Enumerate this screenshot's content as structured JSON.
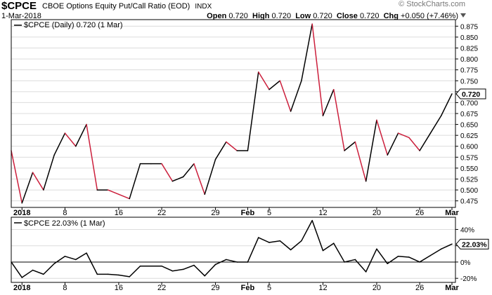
{
  "header": {
    "symbol": "$CPCE",
    "name": "CBOE Options Equity Put/Call Ratio (EOD)",
    "exchange": "INDX",
    "date": "1-Mar-2018",
    "open_label": "Open",
    "open": "0.720",
    "high_label": "High",
    "high": "0.720",
    "low_label": "Low",
    "low": "0.720",
    "close_label": "Close",
    "close": "0.720",
    "chg_label": "Chg",
    "chg": "+0.050 (+7.46%)",
    "watermark": "© StockCharts.com"
  },
  "colors": {
    "up": "#000000",
    "down": "#cc1f3c",
    "grid": "#dcdcdc",
    "axis": "#000000"
  },
  "chart_data": [
    {
      "type": "line",
      "legend": "$CPCE (Daily) 0.720 (1 Mar)",
      "last_value_label": "0.720",
      "ylim": [
        0.46,
        0.89
      ],
      "y_ticks": [
        "0.475",
        "0.500",
        "0.525",
        "0.550",
        "0.575",
        "0.600",
        "0.625",
        "0.650",
        "0.675",
        "0.700",
        "0.725",
        "0.750",
        "0.775",
        "0.800",
        "0.825",
        "0.850",
        "0.875"
      ],
      "x_tick_labels": [
        {
          "label": "2018",
          "i": 1,
          "bold": true
        },
        {
          "label": "8",
          "i": 5
        },
        {
          "label": "16",
          "i": 10
        },
        {
          "label": "22",
          "i": 14
        },
        {
          "label": "29",
          "i": 19
        },
        {
          "label": "Feb",
          "i": 22,
          "bold": true
        },
        {
          "label": "5",
          "i": 24
        },
        {
          "label": "12",
          "i": 29
        },
        {
          "label": "20",
          "i": 34
        },
        {
          "label": "26",
          "i": 38
        },
        {
          "label": "Mar",
          "i": 41,
          "bold": true
        }
      ],
      "values": [
        0.59,
        0.47,
        0.54,
        0.5,
        0.58,
        0.63,
        0.6,
        0.65,
        0.5,
        0.5,
        0.49,
        0.48,
        0.56,
        0.56,
        0.56,
        0.52,
        0.53,
        0.56,
        0.49,
        0.57,
        0.61,
        0.59,
        0.59,
        0.77,
        0.73,
        0.75,
        0.68,
        0.75,
        0.88,
        0.67,
        0.73,
        0.59,
        0.61,
        0.52,
        0.66,
        0.58,
        0.63,
        0.62,
        0.59,
        0.63,
        0.67,
        0.72
      ]
    },
    {
      "type": "line",
      "legend": "$CPCE 22.03% (1 Mar)",
      "last_value_label": "22.03%",
      "ylim": [
        -25,
        55
      ],
      "y_ticks": [
        "40%",
        "20%",
        "0%",
        "-20%"
      ],
      "zero_line": true,
      "values": [
        0,
        -19,
        -10,
        -15,
        -2,
        7,
        3,
        11,
        -15,
        -15,
        -16,
        -18,
        -5,
        -5,
        -5,
        -11,
        -9,
        -4,
        -17,
        -3,
        3,
        0,
        0,
        30,
        24,
        26,
        15,
        26,
        51,
        14,
        23,
        0,
        3,
        -12,
        16,
        -2,
        7,
        6,
        0,
        8,
        16,
        22.03
      ]
    }
  ]
}
